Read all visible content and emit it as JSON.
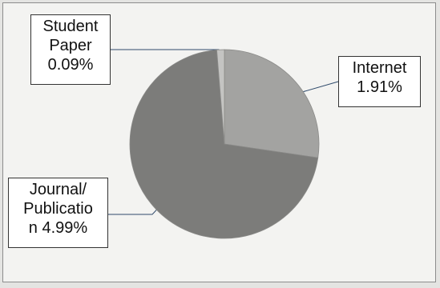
{
  "chart_data": {
    "type": "pie",
    "title": "",
    "categories": [
      "Internet",
      "Journal/ Publication",
      "Student Paper"
    ],
    "values": [
      1.91,
      4.99,
      0.09
    ],
    "unit": "%",
    "slices": [
      {
        "label_lines": [
          "Internet",
          "1.91%"
        ],
        "value": 1.91,
        "color": "#a3a3a1"
      },
      {
        "label_lines": [
          "Journal/",
          "Publicatio",
          "n 4.99%"
        ],
        "value": 4.99,
        "color": "#7c7c7a"
      },
      {
        "label_lines": [
          "Student",
          "Paper",
          "0.09%"
        ],
        "value": 0.09,
        "color": "#c4c4c2"
      }
    ],
    "start_angle_deg": 90,
    "direction": "clockwise",
    "legend": "none"
  }
}
